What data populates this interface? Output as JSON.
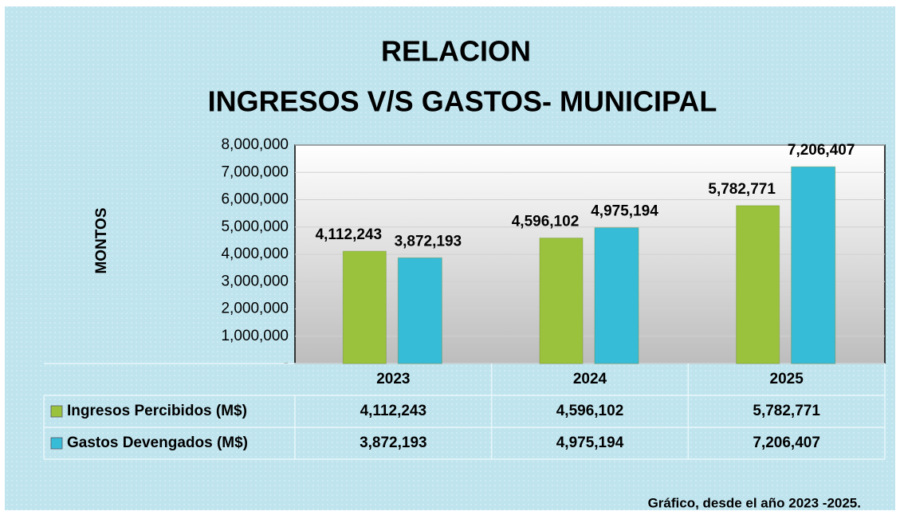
{
  "chart_data": {
    "type": "bar",
    "title": [
      "RELACION",
      "INGRESOS V/S GASTOS- MUNICIPAL"
    ],
    "y_label": "MONTOS",
    "categories": [
      "2023",
      "2024",
      "2025"
    ],
    "series": [
      {
        "name": "Ingresos Percibidos (M$)",
        "color": "#9bc23c",
        "values": [
          4112243,
          4596102,
          5782771
        ],
        "value_labels": [
          "4,112,243",
          "4,596,102",
          "5,782,771"
        ]
      },
      {
        "name": "Gastos Devengados (M$)",
        "color": "#37bcd8",
        "values": [
          3872193,
          4975194,
          7206407
        ],
        "value_labels": [
          "3,872,193",
          "4,975,194",
          "7,206,407"
        ]
      }
    ],
    "ylim": [
      0,
      8000000
    ],
    "yticks": [
      {
        "value": 0,
        "label": "-"
      },
      {
        "value": 1000000,
        "label": "1,000,000"
      },
      {
        "value": 2000000,
        "label": "2,000,000"
      },
      {
        "value": 3000000,
        "label": "3,000,000"
      },
      {
        "value": 4000000,
        "label": "4,000,000"
      },
      {
        "value": 5000000,
        "label": "5,000,000"
      },
      {
        "value": 6000000,
        "label": "6,000,000"
      },
      {
        "value": 7000000,
        "label": "7,000,000"
      },
      {
        "value": 8000000,
        "label": "8,000,000"
      }
    ],
    "grid": true,
    "footnote": "Gráfico, desde el año  2023  -2025."
  }
}
